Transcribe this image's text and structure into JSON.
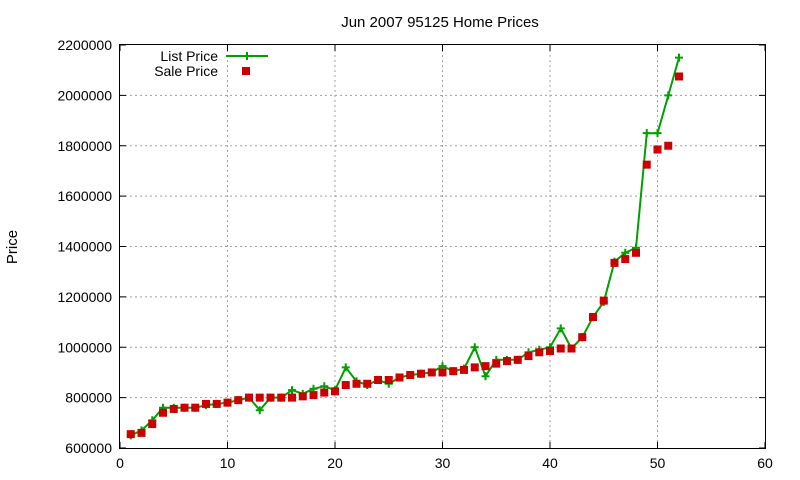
{
  "chart_data": {
    "type": "line",
    "title": "Jun 2007 95125 Home Prices",
    "xlabel": "",
    "ylabel": "Price",
    "xlim": [
      0,
      60
    ],
    "ylim": [
      600000,
      2200000
    ],
    "x_ticks": [
      0,
      10,
      20,
      30,
      40,
      50,
      60
    ],
    "y_ticks": [
      600000,
      800000,
      1000000,
      1200000,
      1400000,
      1600000,
      1800000,
      2000000,
      2200000
    ],
    "grid": true,
    "legend_position": "top-left",
    "series": [
      {
        "name": "List Price",
        "style": "line+cross",
        "color": "#00a000",
        "x": [
          1,
          2,
          3,
          4,
          5,
          6,
          7,
          8,
          9,
          10,
          11,
          12,
          13,
          14,
          15,
          16,
          17,
          18,
          19,
          20,
          21,
          22,
          23,
          24,
          25,
          26,
          27,
          28,
          29,
          30,
          31,
          32,
          33,
          34,
          35,
          36,
          37,
          38,
          39,
          40,
          41,
          42,
          43,
          44,
          45,
          46,
          47,
          48,
          49,
          50,
          51,
          52
        ],
        "y": [
          650000,
          670000,
          710000,
          760000,
          760000,
          760000,
          760000,
          770000,
          775000,
          780000,
          790000,
          800000,
          750000,
          800000,
          800000,
          830000,
          815000,
          835000,
          845000,
          830000,
          920000,
          865000,
          850000,
          870000,
          855000,
          880000,
          890000,
          895000,
          900000,
          925000,
          905000,
          915000,
          1000000,
          885000,
          950000,
          950000,
          950000,
          980000,
          990000,
          1000000,
          1075000,
          995000,
          1040000,
          1120000,
          1180000,
          1340000,
          1375000,
          1395000,
          1850000,
          1850000,
          2000000,
          2150000
        ]
      },
      {
        "name": "Sale Price",
        "style": "square",
        "color": "#cc0000",
        "x": [
          1,
          2,
          3,
          4,
          5,
          6,
          7,
          8,
          9,
          10,
          11,
          12,
          13,
          14,
          15,
          16,
          17,
          18,
          19,
          20,
          21,
          22,
          23,
          24,
          25,
          26,
          27,
          28,
          29,
          30,
          31,
          32,
          33,
          34,
          35,
          36,
          37,
          38,
          39,
          40,
          41,
          42,
          43,
          44,
          45,
          46,
          47,
          48,
          49,
          50,
          51,
          52
        ],
        "y": [
          655000,
          660000,
          695000,
          740000,
          755000,
          760000,
          760000,
          775000,
          775000,
          780000,
          790000,
          800000,
          800000,
          800000,
          800000,
          800000,
          805000,
          810000,
          820000,
          825000,
          850000,
          855000,
          855000,
          870000,
          870000,
          880000,
          890000,
          895000,
          900000,
          900000,
          905000,
          910000,
          920000,
          925000,
          935000,
          945000,
          950000,
          965000,
          980000,
          985000,
          995000,
          995000,
          1040000,
          1120000,
          1185000,
          1335000,
          1350000,
          1375000,
          1725000,
          1785000,
          1800000,
          2075000
        ]
      }
    ]
  }
}
